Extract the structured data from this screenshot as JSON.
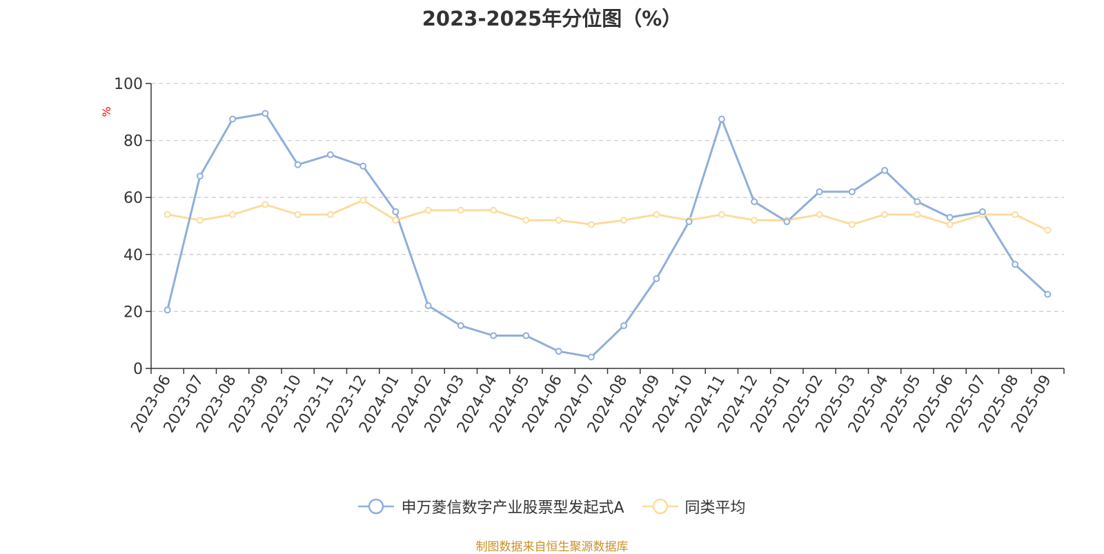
{
  "colors": {
    "series_a": "#8FAEDB",
    "series_b": "#FCDB9C",
    "axis": "#333333",
    "grid": "#cccccc",
    "ylabel": "#ff0000",
    "source": "#c8912a"
  },
  "chart_data": {
    "type": "line",
    "title": "2023-2025年分位图（%）",
    "ylabel": "%",
    "xlabel": "",
    "ylim": [
      0,
      100
    ],
    "yticks": [
      0,
      20,
      40,
      60,
      80,
      100
    ],
    "grid": true,
    "legend_position": "bottom",
    "categories": [
      "2023-06",
      "2023-07",
      "2023-08",
      "2023-09",
      "2023-10",
      "2023-11",
      "2023-12",
      "2024-01",
      "2024-02",
      "2024-03",
      "2024-04",
      "2024-05",
      "2024-06",
      "2024-07",
      "2024-08",
      "2024-09",
      "2024-10",
      "2024-11",
      "2024-12",
      "2025-01",
      "2025-02",
      "2025-03",
      "2025-04",
      "2025-05",
      "2025-06",
      "2025-07",
      "2025-08",
      "2025-09"
    ],
    "series": [
      {
        "name": "申万菱信数字产业股票型发起式A",
        "values": [
          20.5,
          67.5,
          87.5,
          89.5,
          71.5,
          75,
          71,
          55,
          22,
          15,
          11.5,
          11.5,
          6,
          4,
          15,
          31.5,
          51.5,
          87.5,
          58.5,
          51.5,
          62,
          62,
          69.5,
          58.5,
          53,
          55,
          36.5,
          26
        ]
      },
      {
        "name": "同类平均",
        "values": [
          54,
          52,
          54,
          57.5,
          54,
          54,
          59,
          52,
          55.5,
          55.5,
          55.5,
          52,
          52,
          50.5,
          52,
          54,
          52,
          54,
          52,
          52,
          54,
          50.5,
          54,
          54,
          50.5,
          54,
          54,
          48.5
        ]
      }
    ]
  },
  "source_text": "制图数据来自恒生聚源数据库"
}
